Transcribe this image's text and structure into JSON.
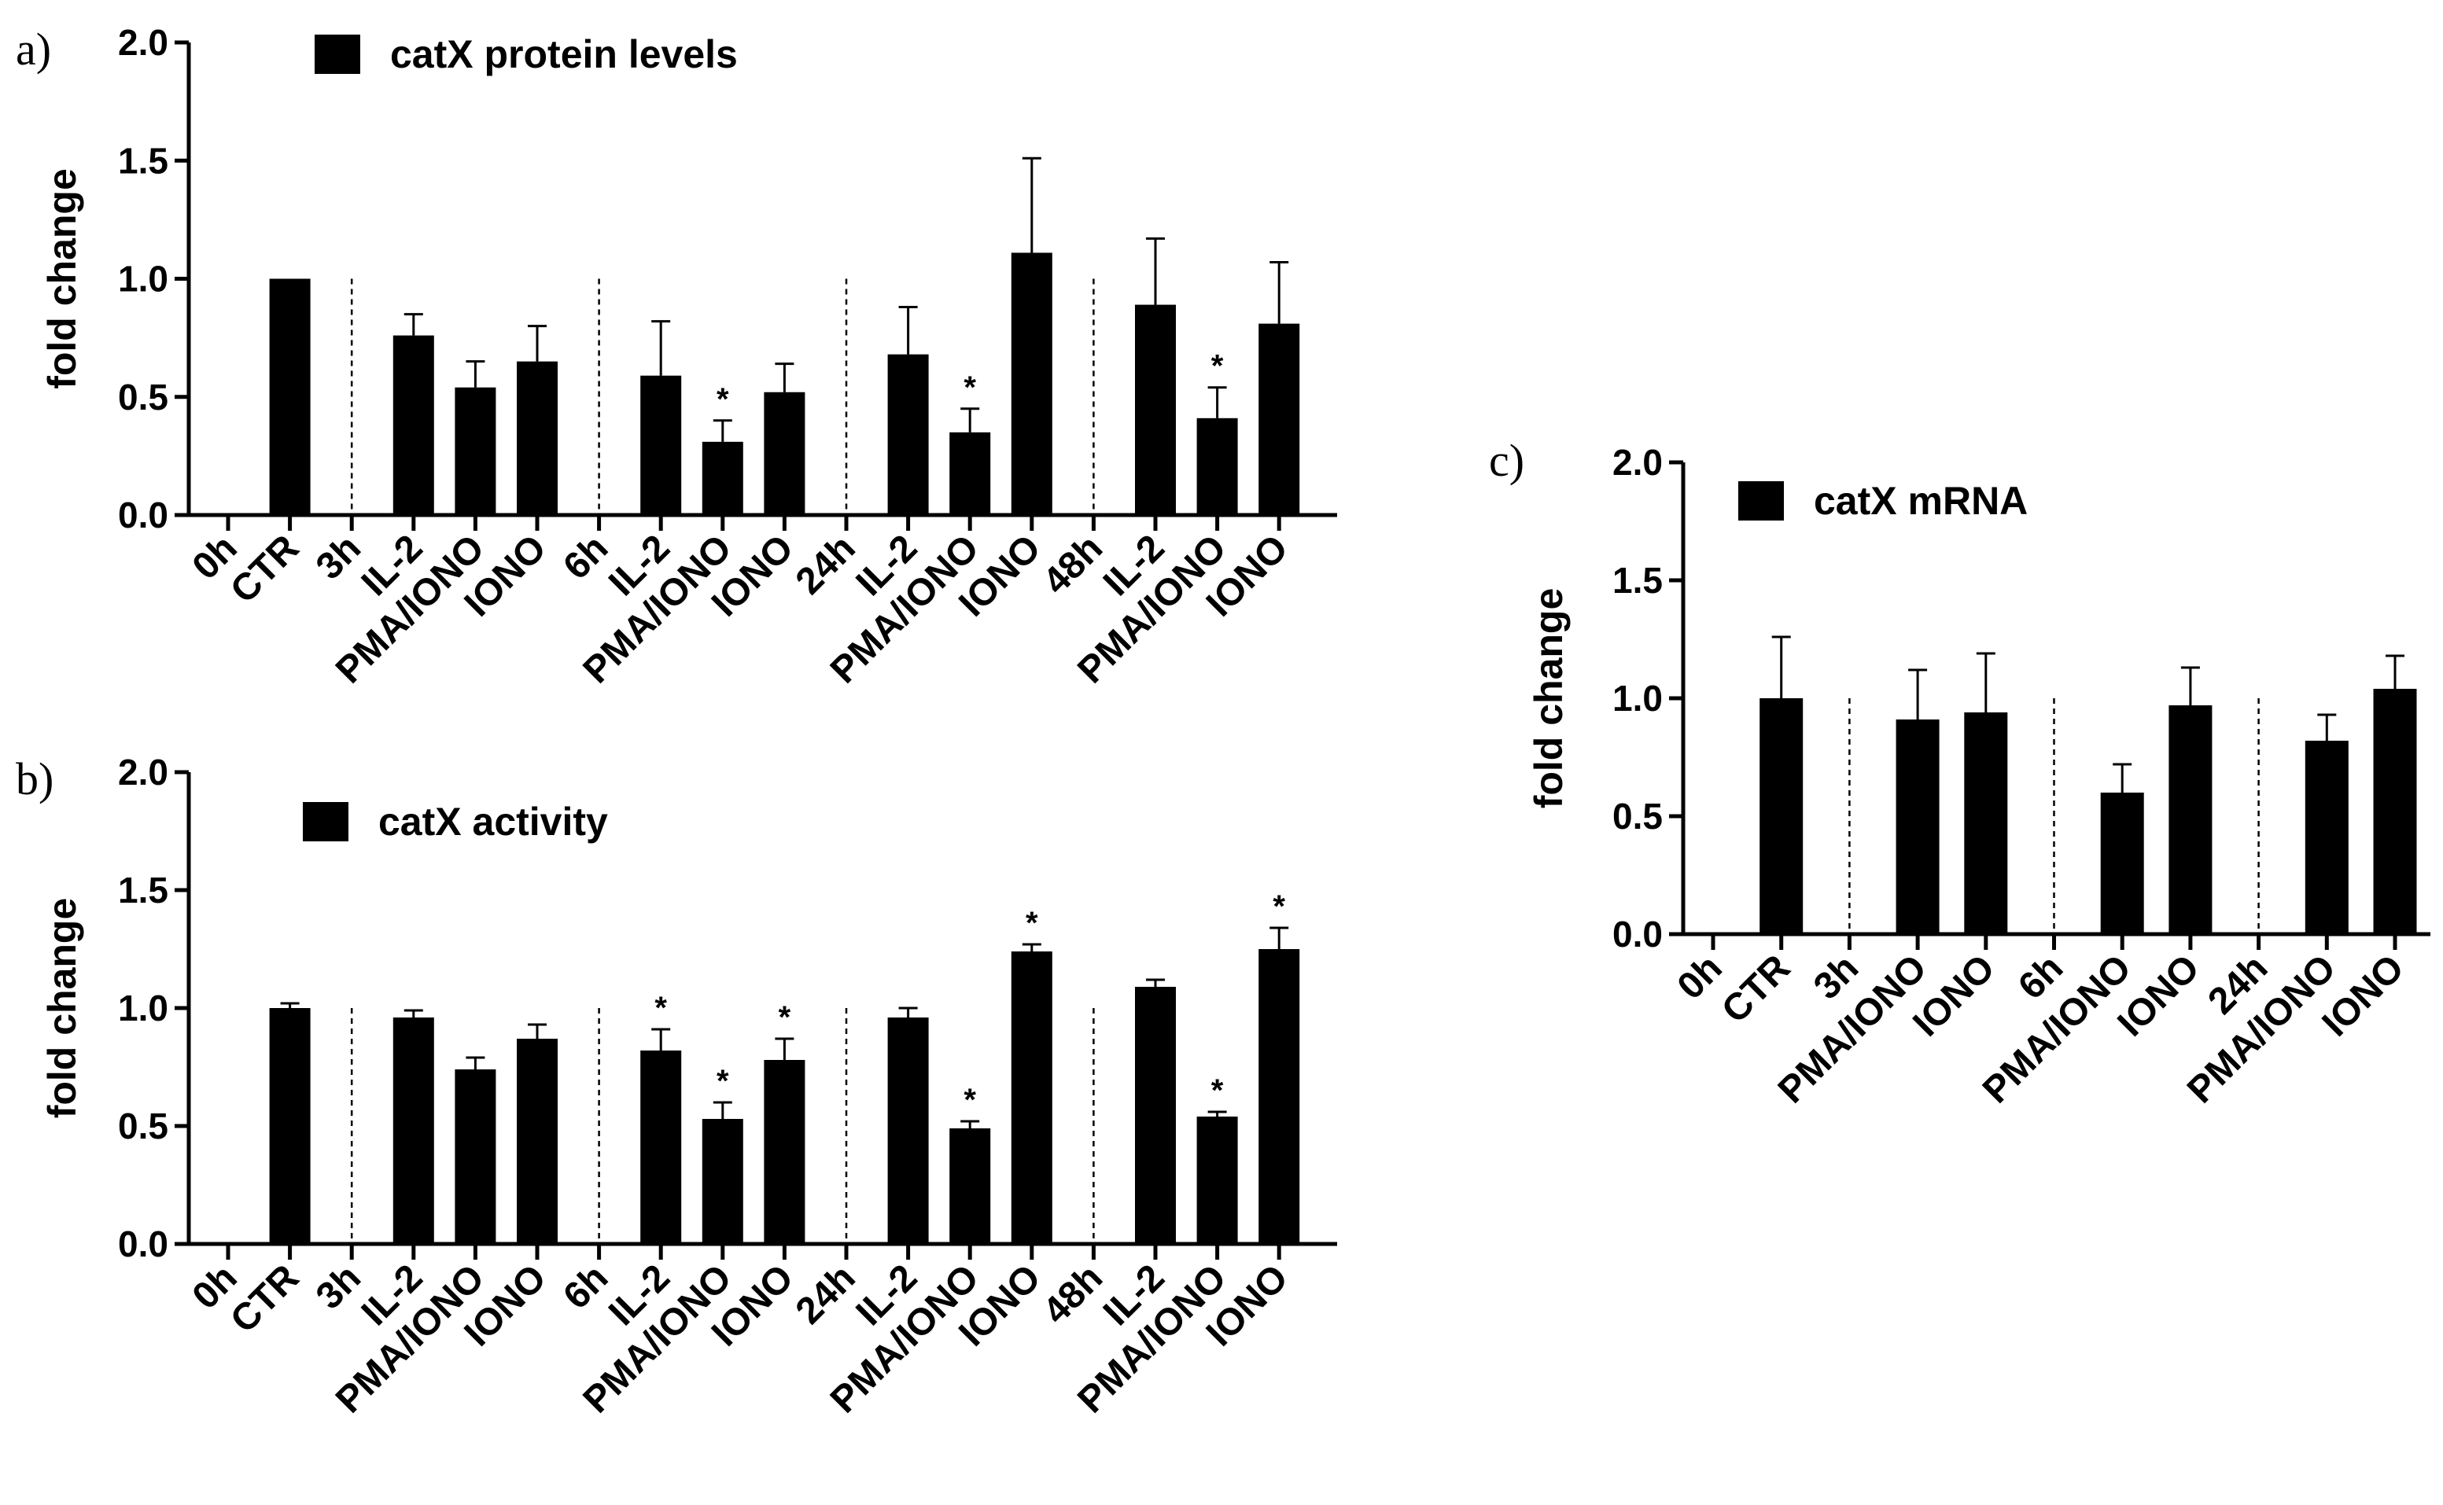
{
  "chart_data": [
    {
      "panel": "a)",
      "type": "bar",
      "legend": "catX protein levels",
      "legend_position": "top-left",
      "ylabel": "fold change",
      "ylim": [
        0,
        2.0
      ],
      "yticks": [
        "0.0",
        "0.5",
        "1.0",
        "1.5",
        "2.0"
      ],
      "categories": [
        "0h",
        "CTR",
        "3h",
        "IL-2",
        "PMA/IONO",
        "IONO",
        "6h",
        "IL-2",
        "PMA/IONO",
        "IONO",
        "24h",
        "IL-2",
        "PMA/IONO",
        "IONO",
        "48h",
        "IL-2",
        "PMA/IONO",
        "IONO"
      ],
      "values": [
        null,
        1.0,
        null,
        0.76,
        0.54,
        0.65,
        null,
        0.59,
        0.31,
        0.52,
        null,
        0.68,
        0.35,
        1.11,
        null,
        0.89,
        0.41,
        0.81
      ],
      "errors": [
        null,
        0,
        null,
        0.09,
        0.11,
        0.15,
        null,
        0.23,
        0.09,
        0.12,
        null,
        0.2,
        0.1,
        0.4,
        null,
        0.28,
        0.13,
        0.26
      ],
      "significant": [
        false,
        false,
        false,
        false,
        false,
        false,
        false,
        false,
        true,
        false,
        false,
        false,
        true,
        false,
        false,
        false,
        true,
        false
      ],
      "sig_marker": "*",
      "separators_after": [
        1,
        5,
        9,
        13
      ],
      "grid": false
    },
    {
      "panel": "b)",
      "type": "bar",
      "legend": "catX activity",
      "legend_position": "top-left",
      "ylabel": "fold change",
      "ylim": [
        0,
        2.0
      ],
      "yticks": [
        "0.0",
        "0.5",
        "1.0",
        "1.5",
        "2.0"
      ],
      "categories": [
        "0h",
        "CTR",
        "3h",
        "IL-2",
        "PMA/IONO",
        "IONO",
        "6h",
        "IL-2",
        "PMA/IONO",
        "IONO",
        "24h",
        "IL-2",
        "PMA/IONO",
        "IONO",
        "48h",
        "IL-2",
        "PMA/IONO",
        "IONO"
      ],
      "values": [
        null,
        1.0,
        null,
        0.96,
        0.74,
        0.87,
        null,
        0.82,
        0.53,
        0.78,
        null,
        0.96,
        0.49,
        1.24,
        null,
        1.09,
        0.54,
        1.25
      ],
      "errors": [
        null,
        0.02,
        null,
        0.03,
        0.05,
        0.06,
        null,
        0.09,
        0.07,
        0.09,
        null,
        0.04,
        0.03,
        0.03,
        null,
        0.03,
        0.02,
        0.09
      ],
      "significant": [
        false,
        false,
        false,
        false,
        false,
        false,
        false,
        true,
        true,
        true,
        false,
        false,
        true,
        true,
        false,
        false,
        true,
        true
      ],
      "sig_marker": "*",
      "separators_after": [
        1,
        5,
        9,
        13
      ],
      "grid": false
    },
    {
      "panel": "c)",
      "type": "bar",
      "legend": "catX mRNA",
      "legend_position": "top-left",
      "ylabel": "fold change",
      "ylim": [
        0,
        2.0
      ],
      "yticks": [
        "0.0",
        "0.5",
        "1.0",
        "1.5",
        "2.0"
      ],
      "categories": [
        "0h",
        "CTR",
        "3h",
        "PMA/IONO",
        "IONO",
        "6h",
        "PMA/IONO",
        "IONO",
        "24h",
        "PMA/IONO",
        "IONO"
      ],
      "values": [
        null,
        1.0,
        null,
        0.91,
        0.94,
        null,
        0.6,
        0.97,
        null,
        0.82,
        1.04
      ],
      "errors": [
        null,
        0.26,
        null,
        0.21,
        0.25,
        null,
        0.12,
        0.16,
        null,
        0.11,
        0.14
      ],
      "significant": [
        false,
        false,
        false,
        false,
        false,
        false,
        false,
        false,
        false,
        false,
        false
      ],
      "sig_marker": "*",
      "separators_after": [
        1,
        4,
        7
      ],
      "grid": false
    }
  ]
}
